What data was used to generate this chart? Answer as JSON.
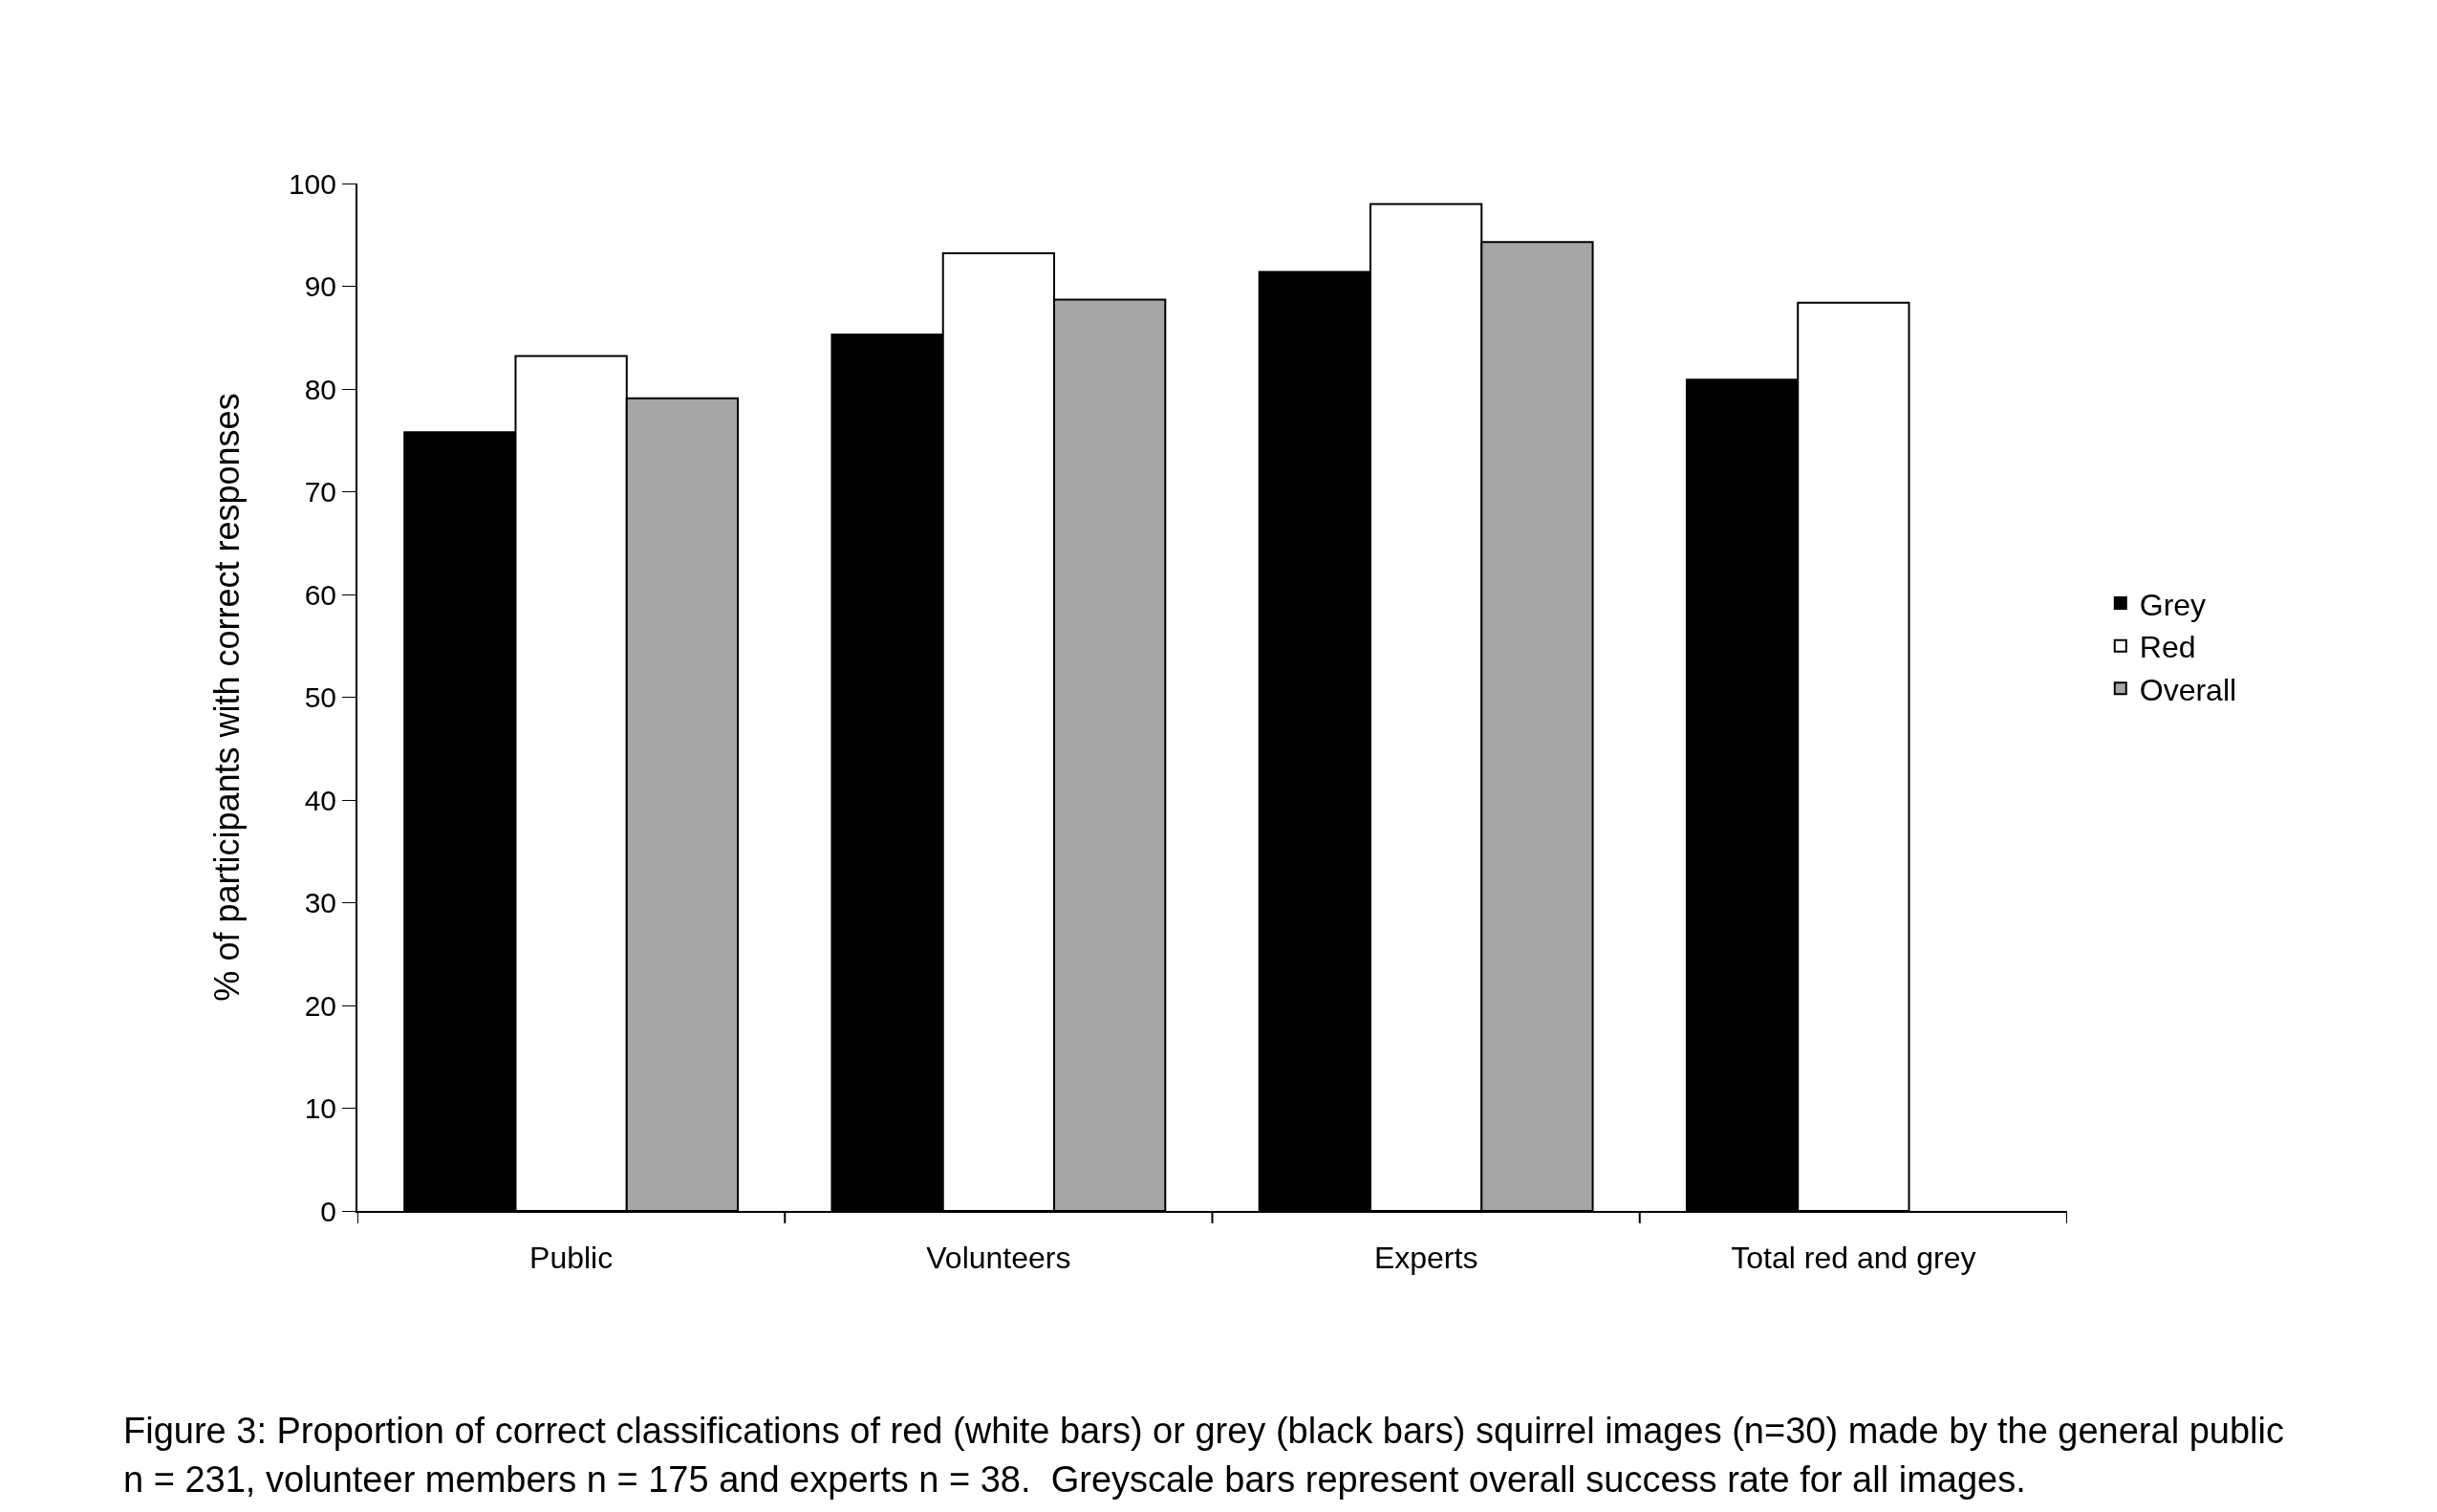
{
  "chart_data": {
    "type": "bar",
    "ylabel": "% of participants with correct responses",
    "categories": [
      "Public",
      "Volunteers",
      "Experts",
      "Total red and grey"
    ],
    "series": [
      {
        "name": "Grey",
        "color": "#000000",
        "values": [
          75.8,
          85.3,
          91.4,
          80.9
        ]
      },
      {
        "name": "Red",
        "color": "#ffffff",
        "values": [
          83.2,
          93.2,
          98.0,
          88.4
        ]
      },
      {
        "name": "Overall",
        "color": "#a6a6a6",
        "values": [
          79.1,
          88.7,
          94.3,
          null
        ]
      }
    ],
    "ylim": [
      0,
      100
    ],
    "yticks": [
      0,
      10,
      20,
      30,
      40,
      50,
      60,
      70,
      80,
      90,
      100
    ],
    "grid": false,
    "legend": "right",
    "annotations": [
      "Figure 3: Proportion of correct classifications of red (white bars) or grey (black bars) squirrel images (n=30) made by the general public",
      "n = 231, volunteer members n = 175 and experts n = 38.  Greyscale bars represent overall success rate for all images."
    ]
  }
}
